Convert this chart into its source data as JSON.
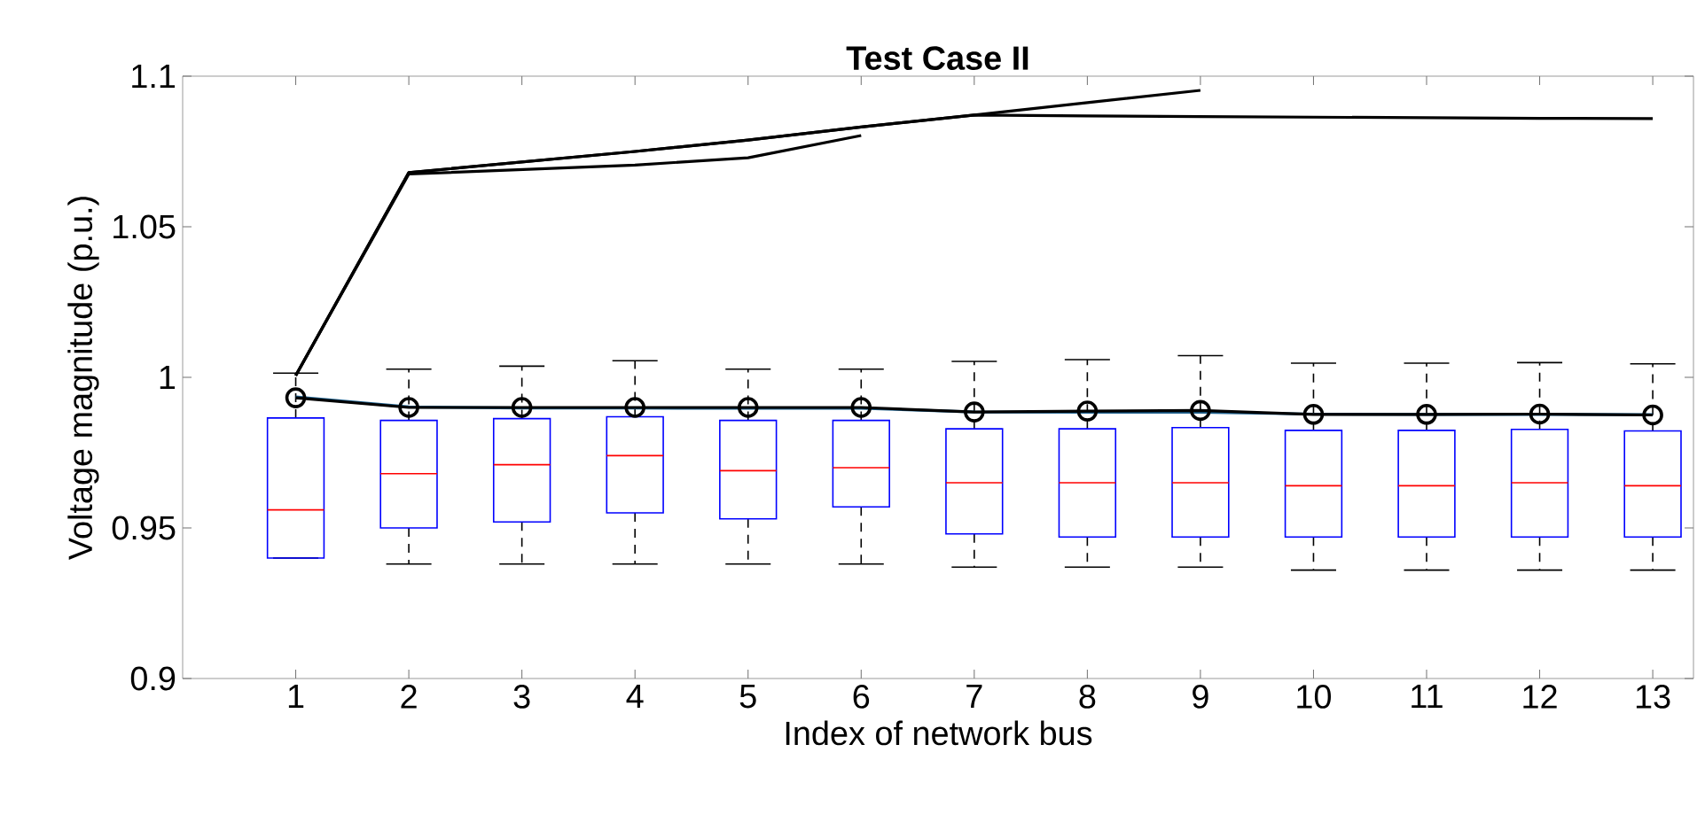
{
  "chart_data": {
    "type": "box",
    "title": "Test Case II",
    "xlabel": "Index of network bus",
    "ylabel": "Voltage magnitude (p.u.)",
    "categories": [
      "1",
      "2",
      "3",
      "4",
      "5",
      "6",
      "7",
      "8",
      "9",
      "10",
      "11",
      "12",
      "13"
    ],
    "ylim": [
      0.9,
      1.1
    ],
    "yticks": [
      0.9,
      0.95,
      1,
      1.05,
      1.1
    ],
    "boxes": [
      {
        "low": 0.94,
        "q1": 0.94,
        "median": 0.956,
        "q3": 0.9865,
        "high": 1.0014
      },
      {
        "low": 0.938,
        "q1": 0.95,
        "median": 0.968,
        "q3": 0.9857,
        "high": 1.0027
      },
      {
        "low": 0.938,
        "q1": 0.952,
        "median": 0.971,
        "q3": 0.9863,
        "high": 1.0037
      },
      {
        "low": 0.938,
        "q1": 0.955,
        "median": 0.974,
        "q3": 0.9869,
        "high": 1.0055
      },
      {
        "low": 0.938,
        "q1": 0.953,
        "median": 0.969,
        "q3": 0.9857,
        "high": 1.0027
      },
      {
        "low": 0.938,
        "q1": 0.957,
        "median": 0.97,
        "q3": 0.9857,
        "high": 1.0027
      },
      {
        "low": 0.937,
        "q1": 0.948,
        "median": 0.965,
        "q3": 0.9829,
        "high": 1.0053
      },
      {
        "low": 0.937,
        "q1": 0.947,
        "median": 0.965,
        "q3": 0.9829,
        "high": 1.0059
      },
      {
        "low": 0.937,
        "q1": 0.947,
        "median": 0.965,
        "q3": 0.9833,
        "high": 1.0072
      },
      {
        "low": 0.936,
        "q1": 0.947,
        "median": 0.964,
        "q3": 0.9824,
        "high": 1.0047
      },
      {
        "low": 0.936,
        "q1": 0.947,
        "median": 0.964,
        "q3": 0.9824,
        "high": 1.0047
      },
      {
        "low": 0.936,
        "q1": 0.947,
        "median": 0.965,
        "q3": 0.9827,
        "high": 1.0049
      },
      {
        "low": 0.936,
        "q1": 0.947,
        "median": 0.964,
        "q3": 0.9822,
        "high": 1.0045
      }
    ],
    "series": [
      {
        "type": "line",
        "color": "#000000",
        "values": [
          1.0006,
          1.0675,
          1.069,
          1.0705,
          1.0729,
          1.0803,
          null,
          null,
          null,
          null,
          null,
          null,
          null
        ]
      },
      {
        "type": "line",
        "color": "#000000",
        "values": [
          1.0006,
          1.068,
          1.0715,
          1.075,
          1.0788,
          1.0831,
          1.0871,
          1.0912,
          1.0953,
          null,
          null,
          null,
          null
        ]
      },
      {
        "type": "line",
        "color": "#000000",
        "values": [
          1.0006,
          1.068,
          1.0715,
          1.075,
          1.0788,
          1.0831,
          1.0871,
          1.0868,
          1.0866,
          1.0864,
          1.0862,
          1.086,
          1.0859
        ]
      },
      {
        "type": "line",
        "color": "#1f6391",
        "values": [
          0.9935,
          0.9902,
          0.9898,
          0.9898,
          0.9897,
          0.9897,
          0.9885,
          0.9884,
          0.9884,
          0.9878,
          0.9877,
          0.9877,
          0.9876
        ]
      },
      {
        "type": "line",
        "color": "#000000",
        "marker": "circle",
        "values": [
          0.9932,
          0.99,
          0.99,
          0.99,
          0.99,
          0.99,
          0.9885,
          0.9888,
          0.989,
          0.9877,
          0.9877,
          0.9878,
          0.9875
        ]
      }
    ]
  }
}
